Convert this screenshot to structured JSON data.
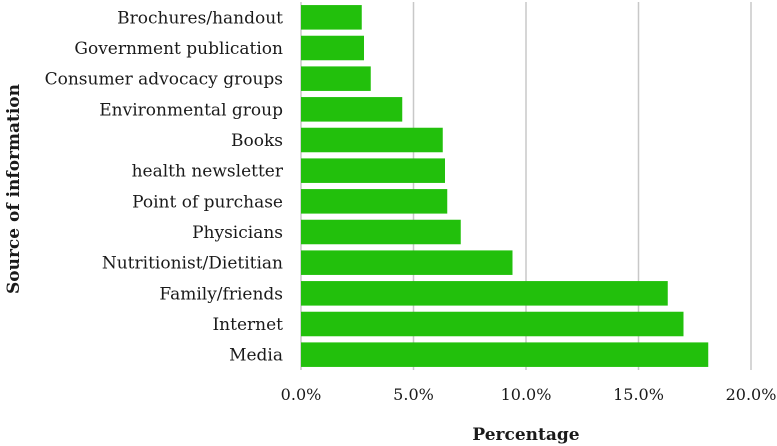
{
  "chart_data": {
    "type": "bar",
    "orientation": "horizontal",
    "categories": [
      "Brochures/handout",
      "Government publication",
      "Consumer advocacy groups",
      "Environmental group",
      "Books",
      "health newsletter",
      "Point of purchase",
      "Physicians",
      "Nutritionist/Dietitian",
      "Family/friends",
      "Internet",
      "Media"
    ],
    "values": [
      2.7,
      2.8,
      3.1,
      4.5,
      6.3,
      6.4,
      6.5,
      7.1,
      9.4,
      16.3,
      17.0,
      18.1
    ],
    "xlabel": "Percentage",
    "ylabel": "Source of information",
    "xlim": [
      0,
      20
    ],
    "xticks": [
      0,
      5,
      10,
      15,
      20
    ],
    "xtick_labels": [
      "0.0%",
      "5.0%",
      "10.0%",
      "15.0%",
      "20.0%"
    ],
    "grid": "vertical",
    "legend": "none",
    "bar_color": "#22c00c"
  }
}
